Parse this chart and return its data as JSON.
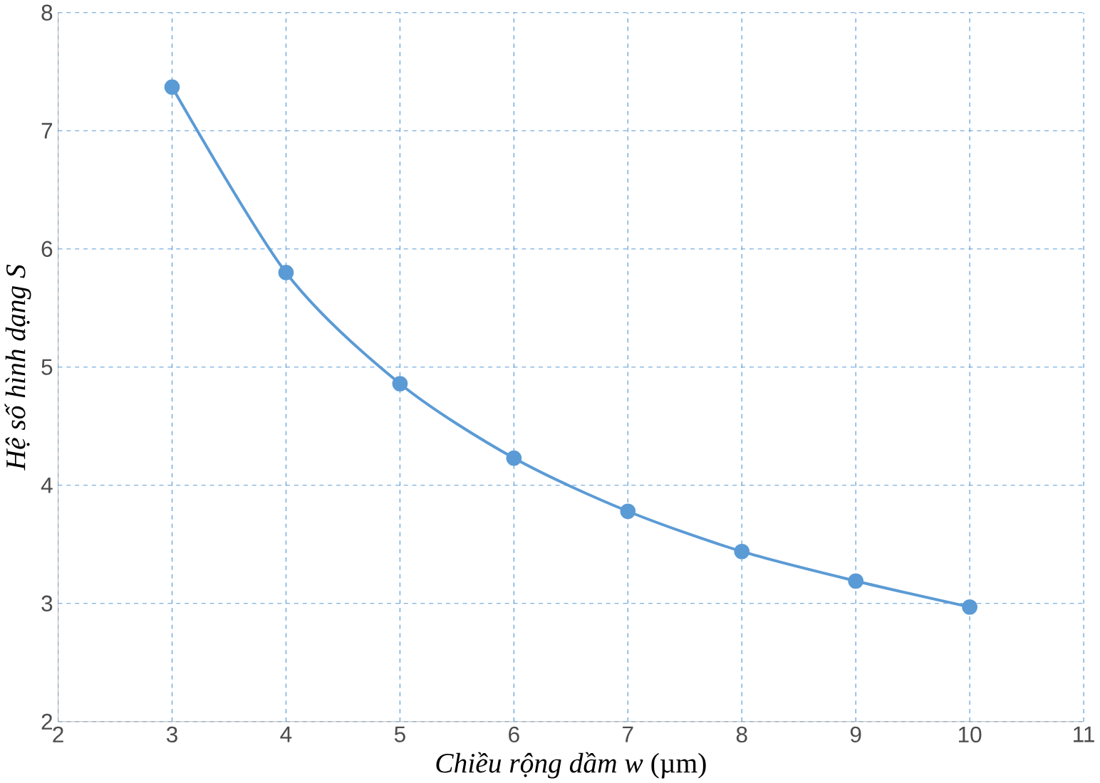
{
  "chart_data": {
    "type": "line",
    "xlabel": "*Chiều rộng dầm w* (µm)",
    "ylabel": "Hệ số hình dạng S",
    "x": [
      3,
      4,
      5,
      6,
      7,
      8,
      9,
      10
    ],
    "series": [
      {
        "color": "#5b9bd5",
        "values": [
          7.37,
          5.8,
          4.86,
          4.23,
          3.78,
          3.44,
          3.19,
          2.97
        ]
      }
    ],
    "xlim": [
      2,
      11
    ],
    "ylim": [
      2,
      8
    ],
    "xticks": [
      2,
      3,
      4,
      5,
      6,
      7,
      8,
      9,
      10,
      11
    ],
    "yticks": [
      2,
      3,
      4,
      5,
      6,
      7,
      8
    ],
    "grid": true,
    "marker": "circle",
    "line_style": "solid"
  }
}
